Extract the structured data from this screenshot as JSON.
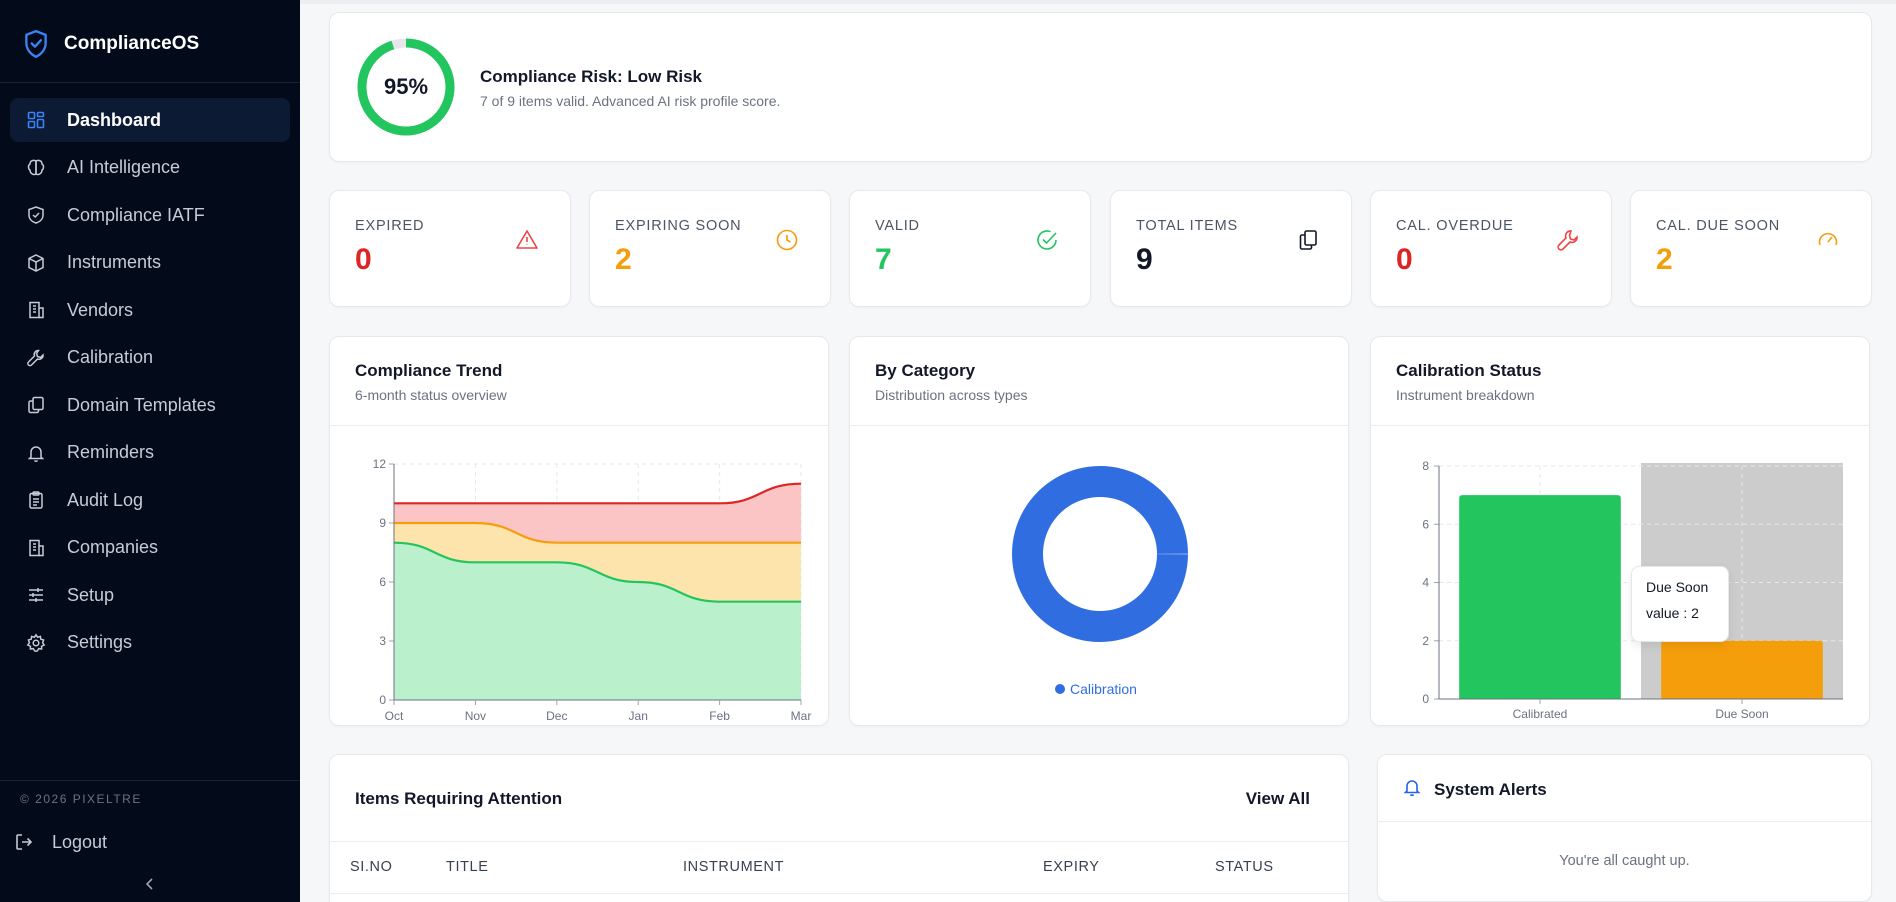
{
  "app": {
    "name": "ComplianceOS",
    "copyright": "© 2026 PIXELTRE"
  },
  "sidebar": {
    "items": [
      {
        "label": "Dashboard",
        "icon": "grid-icon",
        "active": true
      },
      {
        "label": "AI Intelligence",
        "icon": "brain-icon"
      },
      {
        "label": "Compliance IATF",
        "icon": "shield-icon"
      },
      {
        "label": "Instruments",
        "icon": "cube-icon"
      },
      {
        "label": "Vendors",
        "icon": "building-icon"
      },
      {
        "label": "Calibration",
        "icon": "wrench-icon"
      },
      {
        "label": "Domain Templates",
        "icon": "copy-icon"
      },
      {
        "label": "Reminders",
        "icon": "bell-icon"
      },
      {
        "label": "Audit Log",
        "icon": "clipboard-icon"
      },
      {
        "label": "Companies",
        "icon": "building-icon"
      },
      {
        "label": "Setup",
        "icon": "sliders-icon"
      },
      {
        "label": "Settings",
        "icon": "gear-icon"
      }
    ],
    "logout_label": "Logout"
  },
  "risk": {
    "percent_label": "95%",
    "percent": 95,
    "title": "Compliance Risk: Low Risk",
    "subtitle": "7 of 9 items valid. Advanced AI risk profile score."
  },
  "stats": [
    {
      "label": "EXPIRED",
      "value": "0",
      "color": "#dc2626",
      "icon": "alert-triangle-icon"
    },
    {
      "label": "EXPIRING SOON",
      "value": "2",
      "color": "#f59e0b",
      "icon": "clock-icon"
    },
    {
      "label": "VALID",
      "value": "7",
      "color": "#22c55e",
      "icon": "check-circle-icon"
    },
    {
      "label": "TOTAL ITEMS",
      "value": "9",
      "color": "#111827",
      "icon": "copy-icon"
    },
    {
      "label": "CAL. OVERDUE",
      "value": "0",
      "color": "#dc2626",
      "icon": "wrench-icon"
    },
    {
      "label": "CAL. DUE SOON",
      "value": "2",
      "color": "#f59e0b",
      "icon": "gauge-icon"
    }
  ],
  "charts": {
    "trend": {
      "title": "Compliance Trend",
      "subtitle": "6-month status overview"
    },
    "category": {
      "title": "By Category",
      "subtitle": "Distribution across types",
      "legend": "Calibration"
    },
    "calibration": {
      "title": "Calibration Status",
      "subtitle": "Instrument breakdown"
    }
  },
  "chart_data": [
    {
      "type": "area",
      "categories": [
        "Oct",
        "Nov",
        "Dec",
        "Jan",
        "Feb",
        "Mar"
      ],
      "ylim": [
        0,
        12
      ],
      "yticks": [
        "0",
        "3",
        "6",
        "9",
        "12"
      ],
      "stacked": true,
      "series": [
        {
          "values": [
            8,
            7,
            7,
            6,
            5,
            5
          ],
          "color": "#22c55e",
          "fill": "#bbf0cc"
        },
        {
          "values": [
            1,
            2,
            1,
            2,
            3,
            3
          ],
          "color": "#f59e0b",
          "fill": "#fde4ac"
        },
        {
          "values": [
            1,
            1,
            2,
            2,
            2,
            3
          ],
          "color": "#dc2626",
          "fill": "#fcc5c5"
        }
      ],
      "totals": [
        10,
        10,
        10,
        10,
        10,
        11
      ],
      "grid": true
    },
    {
      "type": "pie",
      "donut": true,
      "series": [
        {
          "name": "Calibration",
          "values": [
            100
          ],
          "color": "#2f6de1"
        }
      ]
    },
    {
      "type": "bar",
      "categories": [
        "Calibrated",
        "Due Soon"
      ],
      "values": [
        7,
        2
      ],
      "colors": [
        "#22c55e",
        "#f59e0b"
      ],
      "ylim": [
        0,
        8
      ],
      "yticks": [
        "0",
        "2",
        "4",
        "6",
        "8"
      ],
      "highlighted": "Due Soon",
      "tooltip": {
        "title": "Due Soon",
        "text": "value : 2"
      }
    }
  ],
  "table": {
    "title": "Items Requiring Attention",
    "view_all": "View All",
    "columns": [
      "SI.NO",
      "TITLE",
      "INSTRUMENT",
      "EXPIRY",
      "STATUS"
    ]
  },
  "alerts": {
    "title": "System Alerts",
    "empty": "You're all caught up."
  }
}
